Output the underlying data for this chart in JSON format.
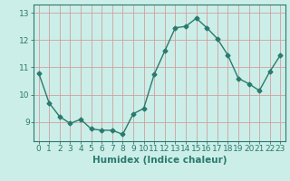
{
  "x": [
    0,
    1,
    2,
    3,
    4,
    5,
    6,
    7,
    8,
    9,
    10,
    11,
    12,
    13,
    14,
    15,
    16,
    17,
    18,
    19,
    20,
    21,
    22,
    23
  ],
  "y": [
    10.8,
    9.7,
    9.2,
    8.95,
    9.1,
    8.75,
    8.7,
    8.7,
    8.55,
    9.3,
    9.5,
    10.75,
    11.6,
    12.45,
    12.5,
    12.8,
    12.45,
    12.05,
    11.45,
    10.6,
    10.4,
    10.15,
    10.85,
    11.45
  ],
  "line_color": "#2a7a6e",
  "marker": "D",
  "marker_size": 2.5,
  "bg_color": "#cceee8",
  "grid_color": "#d0a0a0",
  "xlabel": "Humidex (Indice chaleur)",
  "xlim": [
    -0.5,
    23.5
  ],
  "ylim": [
    8.3,
    13.3
  ],
  "yticks": [
    9,
    10,
    11,
    12,
    13
  ],
  "xticks": [
    0,
    1,
    2,
    3,
    4,
    5,
    6,
    7,
    8,
    9,
    10,
    11,
    12,
    13,
    14,
    15,
    16,
    17,
    18,
    19,
    20,
    21,
    22,
    23
  ],
  "xlabel_fontsize": 7.5,
  "tick_fontsize": 6.5,
  "line_width": 1.0
}
